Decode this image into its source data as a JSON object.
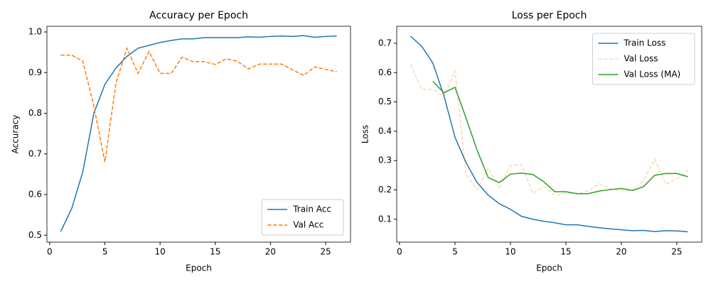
{
  "chart_data": [
    {
      "type": "line",
      "title": "Accuracy per Epoch",
      "xlabel": "Epoch",
      "ylabel": "Accuracy",
      "x": [
        1,
        2,
        3,
        4,
        5,
        6,
        7,
        8,
        9,
        10,
        11,
        12,
        13,
        14,
        15,
        16,
        17,
        18,
        19,
        20,
        21,
        22,
        23,
        24,
        25,
        26
      ],
      "series": [
        {
          "name": "Train Acc",
          "color": "#1f77b4",
          "linestyle": "solid",
          "opacity": 1,
          "values": [
            0.509,
            0.566,
            0.656,
            0.8,
            0.871,
            0.911,
            0.94,
            0.96,
            0.967,
            0.974,
            0.979,
            0.983,
            0.983,
            0.986,
            0.986,
            0.986,
            0.986,
            0.988,
            0.987,
            0.989,
            0.99,
            0.989,
            0.991,
            0.987,
            0.989,
            0.99
          ]
        },
        {
          "name": "Val Acc",
          "color": "#ff7f0e",
          "linestyle": "dashed",
          "opacity": 1,
          "values": [
            0.943,
            0.943,
            0.928,
            0.818,
            0.68,
            0.874,
            0.96,
            0.898,
            0.952,
            0.898,
            0.898,
            0.938,
            0.927,
            0.927,
            0.92,
            0.934,
            0.928,
            0.909,
            0.921,
            0.921,
            0.921,
            0.907,
            0.893,
            0.914,
            0.908,
            0.902
          ]
        }
      ],
      "xlim": [
        -0.25,
        27.25
      ],
      "xticks": [
        0,
        5,
        10,
        15,
        20,
        25
      ],
      "ylim": [
        0.483,
        1.014
      ],
      "yticks": [
        0.5,
        0.6,
        0.7,
        0.8,
        0.9,
        {
          "value": 1.0,
          "label": "1.0"
        }
      ],
      "legend": "lower right"
    },
    {
      "type": "line",
      "title": "Loss per Epoch",
      "xlabel": "Epoch",
      "ylabel": "Loss",
      "x": [
        1,
        2,
        3,
        4,
        5,
        6,
        7,
        8,
        9,
        10,
        11,
        12,
        13,
        14,
        15,
        16,
        17,
        18,
        19,
        20,
        21,
        22,
        23,
        24,
        25,
        26
      ],
      "series": [
        {
          "name": "Train Loss",
          "color": "#1f77b4",
          "linestyle": "solid",
          "opacity": 1,
          "values": [
            0.724,
            0.69,
            0.633,
            0.522,
            0.38,
            0.293,
            0.225,
            0.182,
            0.153,
            0.134,
            0.11,
            0.1,
            0.093,
            0.088,
            0.081,
            0.081,
            0.076,
            0.071,
            0.067,
            0.064,
            0.061,
            0.062,
            0.058,
            0.061,
            0.06,
            0.057
          ]
        },
        {
          "name": "Val Loss",
          "color": "#ff7f0e",
          "linestyle": "dashed",
          "opacity": 0.3,
          "values": [
            0.628,
            0.543,
            0.543,
            0.517,
            0.606,
            0.254,
            0.201,
            0.276,
            0.204,
            0.283,
            0.286,
            0.189,
            0.211,
            0.182,
            0.189,
            0.189,
            0.196,
            0.222,
            0.204,
            0.199,
            0.199,
            0.232,
            0.305,
            0.22,
            0.237,
            0.266
          ]
        },
        {
          "name": "Val Loss (MA)",
          "color": "#2ca02c",
          "linestyle": "solid",
          "opacity": 1,
          "values": [
            null,
            null,
            0.571,
            0.531,
            0.55,
            0.445,
            0.335,
            0.242,
            0.225,
            0.254,
            0.257,
            0.253,
            0.228,
            0.194,
            0.194,
            0.187,
            0.187,
            0.196,
            0.201,
            0.205,
            0.198,
            0.211,
            0.25,
            0.256,
            0.256,
            0.245
          ]
        }
      ],
      "xlim": [
        -0.25,
        27.25
      ],
      "xticks": [
        0,
        5,
        10,
        15,
        20,
        25
      ],
      "ylim": [
        0.022,
        0.758
      ],
      "yticks": [
        0.1,
        0.2,
        0.3,
        0.4,
        0.5,
        0.6,
        0.7
      ],
      "legend": "upper right"
    }
  ]
}
